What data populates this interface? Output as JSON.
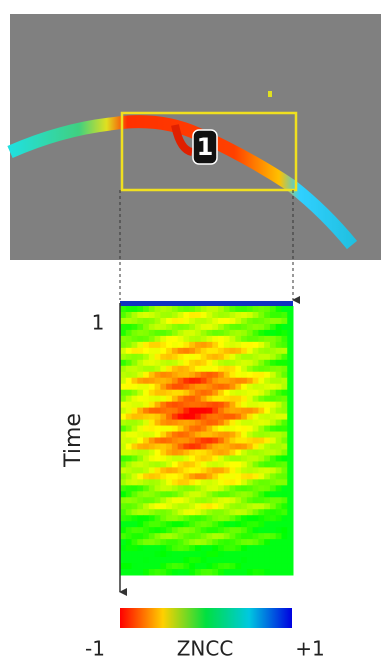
{
  "region_label": "1",
  "heatmap": {
    "start_label": "1",
    "axis_label": "Time"
  },
  "colorbar": {
    "label": "ZNCC",
    "min_label": "-1",
    "max_label": "+1"
  }
}
